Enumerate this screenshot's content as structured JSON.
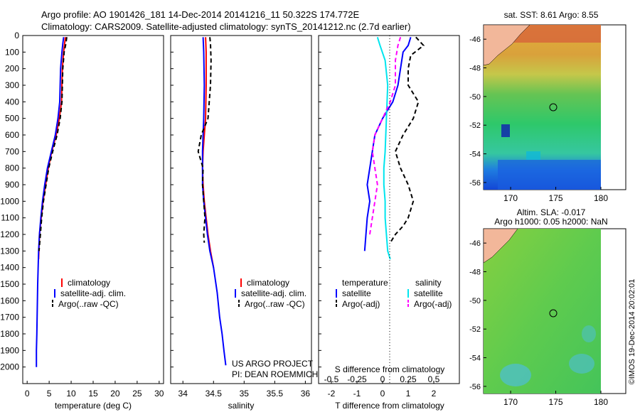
{
  "header": {
    "line1": "Argo profile: AO 1901426_181 14-Dec-2014 20141216_11 50.322S 174.772E",
    "line2": "Climatology: CARS2009. Satellite-adjusted climatology: synTS_20141212.nc (2.7d earlier)"
  },
  "colors": {
    "climatology": "#ff0000",
    "satellite": "#0000ff",
    "argo": "#000000",
    "salinity_satellite": "#00e5ee",
    "salinity_argo": "#ff00ff",
    "land": "#f2b79a",
    "no_data": "#ffffff"
  },
  "credits": {
    "project": "US ARGO PROJECT",
    "pi": "PI: DEAN ROEMMICH",
    "stamp": "©IMOS 19-Dec-2014 20:02:01"
  },
  "chart_data": [
    {
      "type": "line",
      "id": "temperature",
      "xlabel": "temperature (deg C)",
      "ylabel": "",
      "xlim": [
        -1,
        31
      ],
      "ylim": [
        2100,
        0
      ],
      "xticks": [
        0,
        5,
        10,
        15,
        20,
        25,
        30
      ],
      "yticks": [
        0,
        100,
        200,
        300,
        400,
        500,
        600,
        700,
        800,
        900,
        1000,
        1100,
        1200,
        1300,
        1400,
        1500,
        1600,
        1700,
        1800,
        1900,
        2000
      ],
      "legend": {
        "placement": "bottom-center",
        "entries": [
          "climatology",
          "satellite-adj. clim.",
          "Argo(..raw -QC)"
        ]
      },
      "series": [
        {
          "name": "climatology",
          "style": "solid",
          "color": "#ff0000",
          "x": [
            8.7,
            8.5,
            8.3,
            8.0,
            7.8,
            7.3,
            6.6,
            5.6,
            4.8,
            4.2,
            3.6,
            3.2,
            2.8,
            2.6
          ],
          "y": [
            10,
            50,
            100,
            200,
            400,
            500,
            600,
            700,
            800,
            900,
            1000,
            1100,
            1200,
            1350
          ]
        },
        {
          "name": "satellite-adj. clim.",
          "style": "solid",
          "color": "#0000ff",
          "x": [
            8.3,
            8.1,
            7.9,
            7.6,
            7.4,
            7.0,
            6.4,
            5.5,
            4.6,
            4.0,
            3.5,
            3.1,
            2.8,
            2.6,
            2.4,
            2.3,
            2.2,
            2.1,
            2.1
          ],
          "y": [
            10,
            50,
            100,
            200,
            400,
            500,
            600,
            700,
            800,
            900,
            1000,
            1100,
            1200,
            1300,
            1500,
            1650,
            1800,
            1900,
            2000
          ]
        },
        {
          "name": "Argo(..raw -QC)",
          "style": "dashed",
          "color": "#000000",
          "x": [
            9.0,
            8.8,
            8.4,
            8.1,
            7.9,
            7.5,
            6.8,
            5.8,
            4.9,
            4.3,
            3.7,
            3.3,
            3.0,
            2.7
          ],
          "y": [
            10,
            50,
            100,
            200,
            400,
            500,
            600,
            700,
            800,
            900,
            1000,
            1100,
            1200,
            1300
          ]
        }
      ]
    },
    {
      "type": "line",
      "id": "salinity",
      "xlabel": "salinity",
      "ylabel": "",
      "xlim": [
        33.8,
        36.1
      ],
      "ylim": [
        2100,
        0
      ],
      "xticks": [
        34,
        34.5,
        35,
        35.5,
        36
      ],
      "xticklabels": [
        "34",
        "34.5",
        "35",
        "35.5",
        "36"
      ],
      "legend": {
        "placement": "bottom-center",
        "entries": [
          "climatology",
          "satellite-adj. clim.",
          "Argo(..raw -QC)"
        ]
      },
      "series": [
        {
          "name": "climatology",
          "style": "solid",
          "color": "#ff0000",
          "x": [
            34.37,
            34.38,
            34.38,
            34.37,
            34.35,
            34.33,
            34.32,
            34.33,
            34.35,
            34.38,
            34.41,
            34.45,
            34.5
          ],
          "y": [
            10,
            100,
            300,
            500,
            600,
            700,
            800,
            900,
            1000,
            1100,
            1200,
            1300,
            1400
          ]
        },
        {
          "name": "satellite-adj. clim.",
          "style": "solid",
          "color": "#0000ff",
          "x": [
            34.33,
            34.34,
            34.35,
            34.34,
            34.33,
            34.32,
            34.32,
            34.32,
            34.34,
            34.37,
            34.4,
            34.44,
            34.5,
            34.56,
            34.6,
            34.64,
            34.67,
            34.7
          ],
          "y": [
            10,
            100,
            300,
            500,
            600,
            700,
            800,
            900,
            1000,
            1100,
            1200,
            1300,
            1400,
            1550,
            1700,
            1800,
            1900,
            1990
          ]
        },
        {
          "name": "Argo(..raw -QC)",
          "style": "dashed",
          "color": "#000000",
          "x": [
            34.44,
            34.45,
            34.46,
            34.45,
            34.41,
            34.3,
            34.25,
            34.33,
            34.32,
            34.34,
            34.36,
            34.35,
            34.34,
            34.35
          ],
          "y": [
            10,
            50,
            150,
            300,
            500,
            600,
            700,
            800,
            900,
            1000,
            1100,
            1150,
            1200,
            1250
          ]
        }
      ]
    },
    {
      "type": "line",
      "id": "difference",
      "xlabel": "T difference from climatology",
      "xlabel2": "S difference from climatology",
      "xlim": [
        -2.5,
        3
      ],
      "ylim": [
        2100,
        0
      ],
      "xticks_T": [
        -2,
        -1,
        0,
        1,
        2
      ],
      "xticks_S": [
        "-0.5",
        "-0.25",
        "0",
        "0.25",
        "0.5"
      ],
      "xticks_S_pos": [
        -2,
        -1,
        0,
        1,
        2
      ],
      "legend": {
        "placement": "bottom",
        "temperature_title": "temperature",
        "salinity_title": "salinity",
        "entries": [
          "satellite",
          "Argo(-adj)",
          "satellite",
          "Argo(-adj)"
        ]
      },
      "series": [
        {
          "name": "temperature satellite",
          "style": "solid",
          "color": "#0000ff",
          "x": [
            1.1,
            1.0,
            0.8,
            0.7,
            0.6,
            0.4,
            0.0,
            -0.3,
            -0.4,
            -0.5,
            -0.6,
            -0.5,
            -0.6,
            -0.7
          ],
          "y": [
            10,
            60,
            100,
            200,
            300,
            400,
            500,
            600,
            700,
            800,
            900,
            1000,
            1100,
            1300
          ]
        },
        {
          "name": "temperature Argo(-adj)",
          "style": "dashed",
          "color": "#000000",
          "x": [
            1.3,
            1.6,
            1.1,
            1.0,
            1.0,
            1.4,
            1.2,
            0.8,
            0.5,
            0.7,
            1.0,
            1.2,
            1.0,
            0.8,
            0.5,
            0.3
          ],
          "y": [
            10,
            60,
            120,
            200,
            300,
            400,
            500,
            600,
            700,
            800,
            900,
            1000,
            1100,
            1150,
            1200,
            1250
          ]
        },
        {
          "name": "salinity satellite",
          "style": "solid",
          "color": "#00e5ee",
          "x": [
            -0.2,
            -0.1,
            0.1,
            0.2,
            0.15,
            0.1,
            0.05,
            0.05,
            0.1,
            0.1,
            0.15,
            0.2,
            0.3
          ],
          "y": [
            10,
            60,
            150,
            300,
            500,
            700,
            800,
            900,
            1000,
            1100,
            1200,
            1300,
            1350
          ]
        },
        {
          "name": "salinity Argo(-adj)",
          "style": "dashed",
          "color": "#ff00ff",
          "x": [
            0.7,
            0.6,
            0.5,
            0.5,
            0.3,
            0.0,
            -0.3,
            -0.4,
            -0.3,
            -0.2,
            -0.3,
            -0.4,
            -0.5
          ],
          "y": [
            10,
            60,
            150,
            300,
            400,
            500,
            600,
            700,
            800,
            900,
            1000,
            1100,
            1200
          ]
        }
      ]
    },
    {
      "type": "heatmap",
      "id": "sst-map",
      "title": "sat. SST: 8.61  Argo: 8.55",
      "xticks": [
        170,
        175,
        180
      ],
      "yticks": [
        -46,
        -48,
        -50,
        -52,
        -54,
        -56
      ],
      "yticklabels": [
        "-46",
        "-48",
        "-50",
        "-52",
        "-54",
        "-56"
      ],
      "profile_location": [
        174.772,
        -50.322
      ]
    },
    {
      "type": "heatmap",
      "id": "sla-map",
      "title": "Altim. SLA: -0.017",
      "subtitle": "Argo h1000: 0.05 h2000: NaN",
      "xticks": [
        170,
        175,
        180
      ],
      "yticks": [
        -46,
        -48,
        -50,
        -52,
        -54,
        -56
      ],
      "yticklabels": [
        "-46",
        "-48",
        "-50",
        "-52",
        "-54",
        "-56"
      ],
      "profile_location": [
        174.772,
        -50.322
      ]
    }
  ]
}
